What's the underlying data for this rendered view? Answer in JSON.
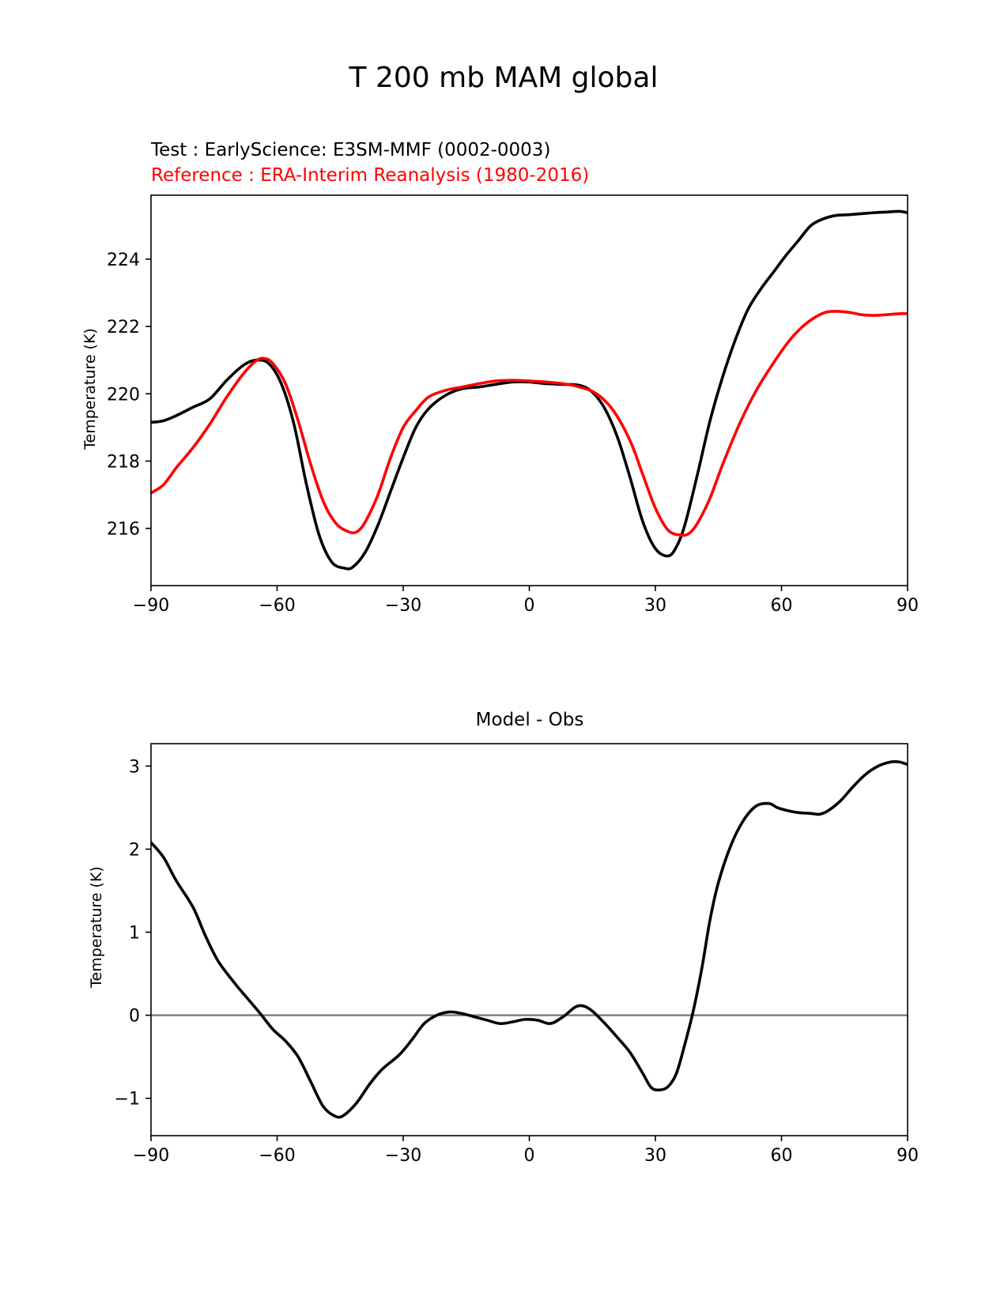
{
  "figure": {
    "suptitle": "T 200 mb MAM global"
  },
  "chart_data": [
    {
      "type": "line",
      "test_label": "Test : EarlyScience: E3SM-MMF (0002-0003)",
      "reference_label": "Reference : ERA-Interim Reanalysis (1980-2016)",
      "xlabel": "",
      "ylabel": "Temperature (K)",
      "xlim": [
        -90,
        90
      ],
      "ylim": [
        214.3,
        225.9
      ],
      "xticks": [
        -90,
        -60,
        -30,
        0,
        30,
        60,
        90
      ],
      "xtick_labels": [
        "−90",
        "−60",
        "−30",
        "0",
        "30",
        "60",
        "90"
      ],
      "yticks": [
        216,
        218,
        220,
        222,
        224
      ],
      "ytick_labels": [
        "216",
        "218",
        "220",
        "222",
        "224"
      ],
      "series": [
        {
          "name": "Test",
          "color": "#000000",
          "x": [
            -90,
            -87,
            -84,
            -80,
            -76,
            -72,
            -68,
            -65,
            -62,
            -59,
            -56,
            -53,
            -50,
            -47,
            -44,
            -42,
            -39,
            -36,
            -33,
            -30,
            -27,
            -24,
            -20,
            -16,
            -12,
            -8,
            -4,
            0,
            4,
            8,
            12,
            15,
            18,
            21,
            24,
            27,
            30,
            33,
            35,
            37,
            40,
            43,
            46,
            49,
            52,
            55,
            58,
            61,
            64,
            67,
            70,
            73,
            76,
            79,
            82,
            85,
            88,
            90
          ],
          "y": [
            219.15,
            219.2,
            219.35,
            219.6,
            219.85,
            220.4,
            220.85,
            221.0,
            220.9,
            220.3,
            219.1,
            217.3,
            215.8,
            215.0,
            214.82,
            214.85,
            215.3,
            216.1,
            217.1,
            218.1,
            219.0,
            219.55,
            219.95,
            220.15,
            220.2,
            220.28,
            220.35,
            220.35,
            220.3,
            220.28,
            220.25,
            220.05,
            219.55,
            218.7,
            217.5,
            216.2,
            215.4,
            215.18,
            215.45,
            216.1,
            217.6,
            219.2,
            220.5,
            221.6,
            222.5,
            223.1,
            223.6,
            224.1,
            224.55,
            225.0,
            225.2,
            225.3,
            225.32,
            225.35,
            225.38,
            225.4,
            225.42,
            225.38
          ]
        },
        {
          "name": "Reference",
          "color": "#ff0000",
          "x": [
            -90,
            -87,
            -84,
            -80,
            -76,
            -72,
            -68,
            -65,
            -63,
            -61,
            -58,
            -55,
            -52,
            -49,
            -46,
            -43,
            -41,
            -39,
            -36,
            -33,
            -30,
            -27,
            -24,
            -20,
            -16,
            -12,
            -8,
            -4,
            0,
            4,
            8,
            12,
            16,
            20,
            24,
            27,
            30,
            33,
            36,
            38,
            40,
            43,
            46,
            50,
            54,
            58,
            62,
            66,
            70,
            73,
            76,
            79,
            82,
            85,
            88,
            90
          ],
          "y": [
            217.05,
            217.3,
            217.8,
            218.4,
            219.1,
            219.9,
            220.6,
            220.98,
            221.05,
            220.9,
            220.3,
            219.2,
            217.9,
            216.8,
            216.15,
            215.9,
            215.9,
            216.2,
            217.0,
            218.1,
            219.0,
            219.5,
            219.9,
            220.1,
            220.2,
            220.3,
            220.38,
            220.4,
            220.38,
            220.35,
            220.3,
            220.2,
            220.0,
            219.5,
            218.6,
            217.6,
            216.6,
            215.95,
            215.8,
            215.85,
            216.15,
            216.9,
            217.9,
            219.1,
            220.1,
            220.9,
            221.6,
            222.1,
            222.4,
            222.45,
            222.42,
            222.35,
            222.33,
            222.35,
            222.38,
            222.38
          ]
        }
      ]
    },
    {
      "type": "line",
      "title": "Model - Obs",
      "xlabel": "",
      "ylabel": "Temperature (K)",
      "xlim": [
        -90,
        90
      ],
      "ylim": [
        -1.45,
        3.27
      ],
      "xticks": [
        -90,
        -60,
        -30,
        0,
        30,
        60,
        90
      ],
      "xtick_labels": [
        "−90",
        "−60",
        "−30",
        "0",
        "30",
        "60",
        "90"
      ],
      "yticks": [
        -1,
        0,
        1,
        2,
        3
      ],
      "ytick_labels": [
        "−1",
        "0",
        "1",
        "2",
        "3"
      ],
      "zero_line_color": "#808080",
      "series": [
        {
          "name": "Model - Obs",
          "color": "#000000",
          "x": [
            -90,
            -87,
            -84,
            -80,
            -77,
            -74,
            -70,
            -67,
            -64,
            -61,
            -58,
            -55,
            -52,
            -49,
            -46,
            -44,
            -41,
            -38,
            -35,
            -31,
            -28,
            -25,
            -22,
            -19,
            -16,
            -13,
            -10,
            -7,
            -4,
            -1,
            2,
            5,
            8,
            11,
            13,
            15,
            18,
            21,
            24,
            27,
            29,
            31,
            33,
            35,
            37,
            39,
            41,
            43,
            45,
            48,
            51,
            54,
            57,
            59,
            61,
            64,
            67,
            69,
            71,
            74,
            77,
            80,
            83,
            86,
            88,
            90
          ],
          "y": [
            2.08,
            1.9,
            1.62,
            1.3,
            0.95,
            0.65,
            0.38,
            0.2,
            0.02,
            -0.17,
            -0.31,
            -0.5,
            -0.8,
            -1.1,
            -1.22,
            -1.2,
            -1.05,
            -0.83,
            -0.65,
            -0.48,
            -0.3,
            -0.1,
            0.0,
            0.04,
            0.02,
            -0.02,
            -0.06,
            -0.1,
            -0.08,
            -0.05,
            -0.06,
            -0.1,
            -0.02,
            0.1,
            0.11,
            0.05,
            -0.1,
            -0.27,
            -0.45,
            -0.7,
            -0.87,
            -0.9,
            -0.86,
            -0.7,
            -0.35,
            0.05,
            0.55,
            1.15,
            1.6,
            2.05,
            2.35,
            2.52,
            2.55,
            2.5,
            2.47,
            2.44,
            2.43,
            2.42,
            2.46,
            2.58,
            2.75,
            2.9,
            3.0,
            3.05,
            3.05,
            3.02
          ]
        }
      ]
    }
  ]
}
